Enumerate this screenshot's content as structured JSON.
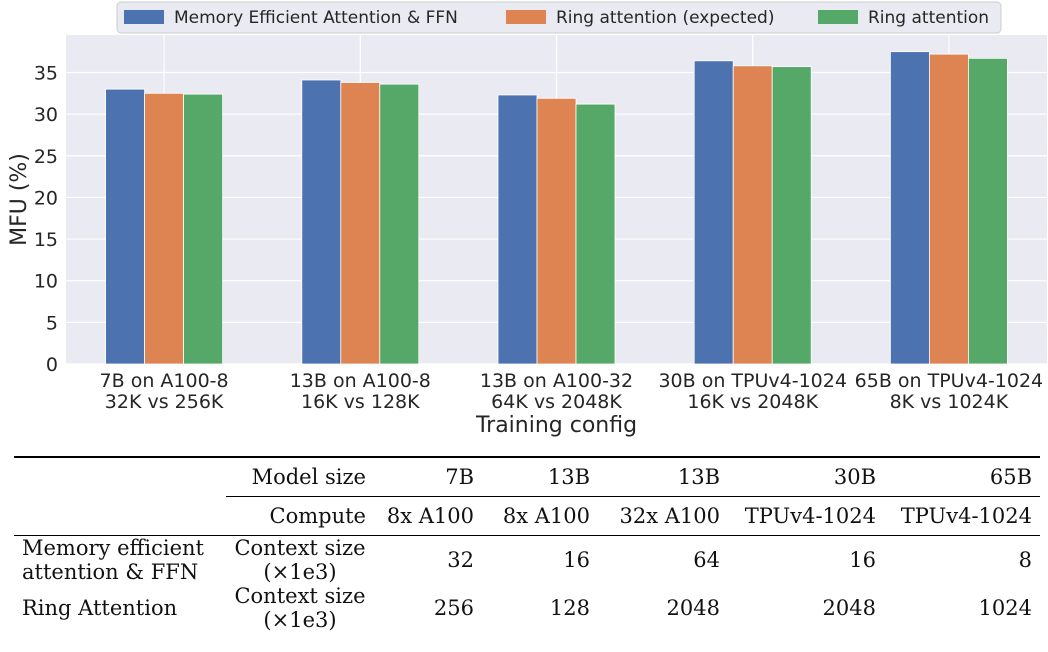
{
  "chart_data": {
    "type": "bar",
    "categories": [
      [
        "7B on A100-8",
        "32K vs 256K"
      ],
      [
        "13B on A100-8",
        "16K vs 128K"
      ],
      [
        "13B on A100-32",
        "64K vs 2048K"
      ],
      [
        "30B on TPUv4-1024",
        "16K vs 2048K"
      ],
      [
        "65B on TPUv4-1024",
        "8K vs 1024K"
      ]
    ],
    "series": [
      {
        "name": "Memory Efficient Attention & FFN",
        "color": "#4c72b0",
        "values": [
          33.0,
          34.1,
          32.3,
          36.4,
          37.5
        ]
      },
      {
        "name": "Ring attention (expected)",
        "color": "#dd8452",
        "values": [
          32.5,
          33.8,
          31.9,
          35.8,
          37.2
        ]
      },
      {
        "name": "Ring attention",
        "color": "#55a868",
        "values": [
          32.4,
          33.6,
          31.2,
          35.7,
          36.7
        ]
      }
    ],
    "xlabel": "Training config",
    "ylabel": "MFU (%)",
    "ylim": [
      0,
      39.5
    ],
    "yticks": [
      0,
      5,
      10,
      15,
      20,
      25,
      30,
      35
    ],
    "grid": true,
    "legend_position": "top-center"
  },
  "table": {
    "header_rows": [
      {
        "label": "Model size",
        "cells": [
          "7B",
          "13B",
          "13B",
          "30B",
          "65B"
        ]
      },
      {
        "label": "Compute",
        "cells": [
          "8x A100",
          "8x A100",
          "32x A100",
          "TPUv4-1024",
          "TPUv4-1024"
        ]
      }
    ],
    "rows": [
      {
        "group": [
          "Memory efficient",
          "attention & FFN"
        ],
        "metric": [
          "Context size",
          "(×1e3)"
        ],
        "cells": [
          "32",
          "16",
          "64",
          "16",
          "8"
        ]
      },
      {
        "group": [
          "Ring Attention"
        ],
        "metric": [
          "Context size",
          "(×1e3)"
        ],
        "cells": [
          "256",
          "128",
          "2048",
          "2048",
          "1024"
        ]
      }
    ]
  }
}
